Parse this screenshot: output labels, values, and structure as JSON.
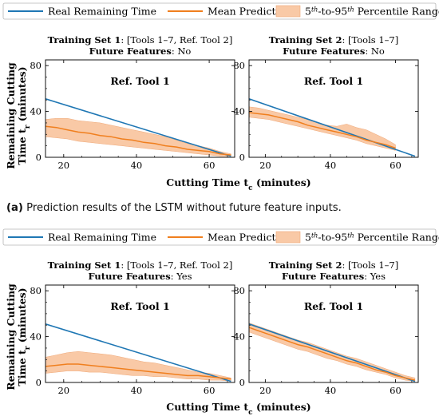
{
  "legend": {
    "real": "Real Remaining Time",
    "mean": "Mean Prediction",
    "range_pre": "5",
    "range_sup1": "th",
    "range_mid": "-to-95",
    "range_sup2": "th",
    "range_post": " Percentile Range"
  },
  "colors": {
    "real": "#1f77b4",
    "mean": "#f07f1e",
    "band": "#f9c9a6",
    "band_edge": "#f0a877"
  },
  "captions": [
    {
      "label": "(a)",
      "text": " Prediction results of the LSTM without future feature inputs."
    }
  ],
  "figure_labels": {
    "ylabel_line1": "Remaining Cutting",
    "ylabel_line2_pre": "Time t",
    "ylabel_sub": "r",
    "ylabel_line2_post": " (minutes)",
    "xlabel_pre": "Cutting Time t",
    "xlabel_sub": "c",
    "xlabel_post": " (minutes)"
  },
  "chart_data": [
    {
      "type": "line",
      "panel": "a-left",
      "title_bold": "Training Set 1",
      "title_rest": ": [Tools 1–7, Ref. Tool 2]",
      "subtitle_bold": "Future Features",
      "subtitle_rest": ": No",
      "annotation": "Ref. Tool 1",
      "xlim": [
        15,
        67
      ],
      "ylim": [
        0,
        85
      ],
      "xticks": [
        20,
        40,
        60
      ],
      "yticks": [
        0,
        40,
        80
      ],
      "real": {
        "x": [
          15,
          66
        ],
        "y": [
          51,
          1
        ]
      },
      "mean": {
        "x": [
          15,
          18,
          21,
          24,
          27,
          30,
          33,
          36,
          39,
          42,
          45,
          48,
          51,
          54,
          57,
          60,
          63,
          66
        ],
        "y": [
          27,
          26,
          24,
          22,
          21,
          19,
          18,
          16,
          15,
          13,
          12,
          10,
          9,
          7,
          6,
          5,
          3,
          2
        ]
      },
      "p5": {
        "x": [
          15,
          18,
          21,
          24,
          27,
          30,
          33,
          36,
          39,
          42,
          45,
          48,
          51,
          54,
          57,
          60,
          63,
          66
        ],
        "y": [
          18,
          17,
          16,
          14,
          13,
          12,
          11,
          10,
          9,
          8,
          7,
          6,
          5,
          4,
          3,
          2,
          1,
          1
        ]
      },
      "p95": {
        "x": [
          15,
          18,
          21,
          24,
          27,
          30,
          33,
          36,
          39,
          42,
          45,
          48,
          51,
          54,
          57,
          60,
          63,
          66
        ],
        "y": [
          33,
          34,
          34,
          32,
          31,
          30,
          28,
          26,
          24,
          22,
          20,
          18,
          15,
          12,
          10,
          8,
          5,
          3
        ]
      }
    },
    {
      "type": "line",
      "panel": "a-right",
      "title_bold": "Training Set 2",
      "title_rest": ": [Tools 1–7]",
      "subtitle_bold": "Future Features",
      "subtitle_rest": ": No",
      "annotation": "Ref. Tool 1",
      "xlim": [
        15,
        67
      ],
      "ylim": [
        0,
        85
      ],
      "xticks": [
        20,
        40,
        60
      ],
      "yticks": [
        0,
        40,
        80
      ],
      "real": {
        "x": [
          15,
          66
        ],
        "y": [
          51,
          1
        ]
      },
      "mean": {
        "x": [
          15,
          18,
          21,
          24,
          27,
          30,
          33,
          36,
          39,
          42,
          45,
          48,
          51,
          54,
          57,
          60
        ],
        "y": [
          39,
          38,
          37,
          35,
          33,
          31,
          28,
          26,
          24,
          22,
          20,
          18,
          15,
          13,
          11,
          8
        ]
      },
      "p5": {
        "x": [
          15,
          18,
          21,
          24,
          27,
          30,
          33,
          36,
          39,
          42,
          45,
          48,
          51,
          54,
          57,
          60
        ],
        "y": [
          35,
          34,
          33,
          31,
          29,
          27,
          25,
          23,
          21,
          19,
          17,
          15,
          12,
          10,
          8,
          6
        ]
      },
      "p95": {
        "x": [
          15,
          18,
          21,
          24,
          27,
          30,
          33,
          36,
          39,
          42,
          45,
          48,
          51,
          54,
          57,
          60
        ],
        "y": [
          44,
          43,
          41,
          39,
          37,
          35,
          33,
          30,
          28,
          27,
          29,
          26,
          24,
          20,
          16,
          11
        ]
      }
    },
    {
      "type": "line",
      "panel": "b-left",
      "title_bold": "Training Set 1",
      "title_rest": ": [Tools 1–7, Ref. Tool 2]",
      "subtitle_bold": "Future Features",
      "subtitle_rest": ": Yes",
      "annotation": "Ref. Tool 1",
      "xlim": [
        15,
        67
      ],
      "ylim": [
        0,
        85
      ],
      "xticks": [
        20,
        40,
        60
      ],
      "yticks": [
        0,
        40,
        80
      ],
      "real": {
        "x": [
          15,
          66
        ],
        "y": [
          51,
          1
        ]
      },
      "mean": {
        "x": [
          15,
          18,
          21,
          24,
          27,
          30,
          33,
          36,
          39,
          42,
          45,
          48,
          51,
          54,
          57,
          60,
          63,
          66
        ],
        "y": [
          14,
          15,
          16,
          16,
          15,
          14,
          13,
          12,
          11,
          10,
          9,
          8,
          7,
          6,
          6,
          5,
          4,
          3
        ]
      },
      "p5": {
        "x": [
          15,
          18,
          21,
          24,
          27,
          30,
          33,
          36,
          39,
          42,
          45,
          48,
          51,
          54,
          57,
          60,
          63,
          66
        ],
        "y": [
          8,
          9,
          10,
          10,
          9,
          9,
          8,
          7,
          6,
          6,
          5,
          5,
          4,
          3,
          3,
          2,
          2,
          1
        ]
      },
      "p95": {
        "x": [
          15,
          18,
          21,
          24,
          27,
          30,
          33,
          36,
          39,
          42,
          45,
          48,
          51,
          54,
          57,
          60,
          63,
          66
        ],
        "y": [
          22,
          24,
          26,
          27,
          26,
          25,
          24,
          22,
          20,
          18,
          17,
          15,
          13,
          11,
          9,
          8,
          6,
          4
        ]
      }
    },
    {
      "type": "line",
      "panel": "b-right",
      "title_bold": "Training Set 2",
      "title_rest": ": [Tools 1–7]",
      "subtitle_bold": "Future Features",
      "subtitle_rest": ": Yes",
      "annotation": "Ref. Tool 1",
      "xlim": [
        15,
        67
      ],
      "ylim": [
        0,
        85
      ],
      "xticks": [
        20,
        40,
        60
      ],
      "yticks": [
        0,
        40,
        80
      ],
      "real": {
        "x": [
          15,
          66
        ],
        "y": [
          51,
          1
        ]
      },
      "mean": {
        "x": [
          15,
          18,
          21,
          24,
          27,
          30,
          33,
          36,
          39,
          42,
          45,
          48,
          51,
          54,
          57,
          60,
          63,
          66
        ],
        "y": [
          48,
          45,
          42,
          39,
          36,
          33,
          31,
          28,
          25,
          22,
          19,
          17,
          14,
          11,
          9,
          6,
          4,
          2
        ]
      },
      "p5": {
        "x": [
          15,
          18,
          21,
          24,
          27,
          30,
          33,
          36,
          39,
          42,
          45,
          48,
          51,
          54,
          57,
          60,
          63,
          66
        ],
        "y": [
          44,
          41,
          38,
          35,
          32,
          29,
          27,
          24,
          21,
          19,
          16,
          14,
          11,
          9,
          7,
          4,
          2,
          1
        ]
      },
      "p95": {
        "x": [
          15,
          18,
          21,
          24,
          27,
          30,
          33,
          36,
          39,
          42,
          45,
          48,
          51,
          54,
          57,
          60,
          63,
          66
        ],
        "y": [
          52,
          49,
          46,
          43,
          40,
          37,
          35,
          32,
          29,
          26,
          23,
          21,
          18,
          15,
          12,
          9,
          6,
          4
        ]
      }
    }
  ]
}
